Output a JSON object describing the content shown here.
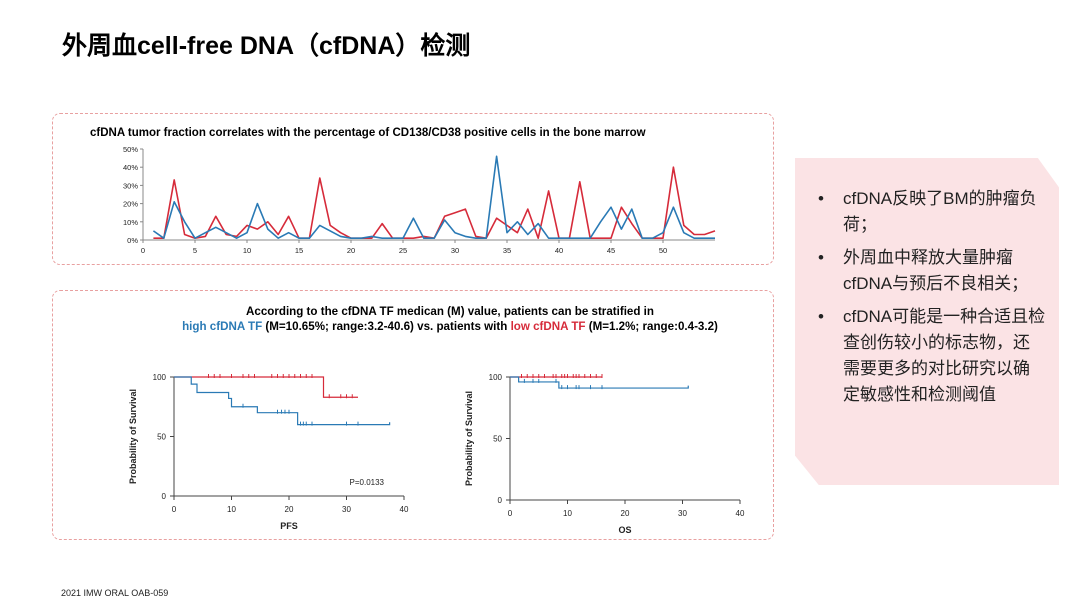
{
  "page": {
    "title": "外周血cell-free DNA（cfDNA）检测",
    "footer": "2021 IMW ORAL OAB-059"
  },
  "stratification": {
    "line1": "According to the cfDNA TF medican (M) value, patients can be stratified in",
    "high_label": "high cfDNA TF",
    "high_stats": " (M=10.65%; range:3.2-40.6) vs. patients with ",
    "low_label": "low cfDNA TF",
    "low_stats": " (M=1.2%; range:0.4-3.2)"
  },
  "bullets": [
    "cfDNA反映了BM的肿瘤负荷；",
    "外周血中释放大量肿瘤cfDNA与预后不良相关；",
    "cfDNA可能是一种合适且检查创伤较小的标志物，还需要更多的对比研究以确定敏感性和检测阈值"
  ],
  "colors": {
    "red": "#d62b3a",
    "blue": "#2a7ab5",
    "pink_panel": "#fbe3e5"
  },
  "chart_data": [
    {
      "type": "line",
      "title": "cfDNA tumor fraction correlates with the percentage of CD138/CD38 positive cells in the bone marrow",
      "x": [
        1,
        2,
        3,
        4,
        5,
        6,
        7,
        8,
        9,
        10,
        11,
        12,
        13,
        14,
        15,
        16,
        17,
        18,
        19,
        20,
        21,
        22,
        23,
        24,
        25,
        26,
        27,
        28,
        29,
        30,
        31,
        32,
        33,
        34,
        35,
        36,
        37,
        38,
        39,
        40,
        41,
        42,
        43,
        44,
        45,
        46,
        47,
        48,
        49,
        50,
        51,
        52,
        53,
        54,
        55
      ],
      "xticks": [
        0,
        5,
        10,
        15,
        20,
        25,
        30,
        35,
        40,
        45,
        50
      ],
      "yticks": [
        "0%",
        "10%",
        "20%",
        "30%",
        "40%",
        "50%"
      ],
      "ylim": [
        0,
        50
      ],
      "xlim": [
        0,
        55
      ],
      "series": [
        {
          "color": "#d62b3a",
          "values": [
            1,
            1,
            33,
            3,
            1,
            2,
            13,
            3,
            2,
            8,
            6,
            10,
            3,
            13,
            1,
            1,
            34,
            8,
            4,
            1,
            1,
            1,
            9,
            1,
            1,
            1,
            2,
            1,
            13,
            15,
            17,
            2,
            1,
            12,
            8,
            4,
            17,
            1,
            27,
            1,
            1,
            32,
            1,
            1,
            1,
            18,
            9,
            1,
            1,
            1,
            40,
            8,
            3,
            3,
            5
          ]
        },
        {
          "color": "#2a7ab5",
          "values": [
            5,
            1,
            21,
            10,
            1,
            4,
            7,
            4,
            1,
            4,
            20,
            6,
            1,
            4,
            1,
            1,
            8,
            5,
            2,
            1,
            1,
            2,
            1,
            1,
            1,
            12,
            1,
            1,
            11,
            4,
            2,
            1,
            1,
            46,
            4,
            10,
            3,
            9,
            1,
            1,
            1,
            1,
            1,
            10,
            18,
            6,
            17,
            1,
            1,
            4,
            18,
            4,
            1,
            1,
            1
          ]
        }
      ]
    },
    {
      "type": "line",
      "subtype": "kaplan-meier",
      "xlabel": "PFS",
      "ylabel": "Probability of Survival",
      "annotation": "P=0.0133",
      "xticks": [
        0,
        10,
        20,
        30,
        40
      ],
      "yticks": [
        0,
        50,
        100
      ],
      "xlim": [
        0,
        40
      ],
      "ylim": [
        0,
        100
      ],
      "series": [
        {
          "color": "#d62b3a",
          "steps": [
            [
              0,
              100
            ],
            [
              26,
              100
            ],
            [
              26,
              83
            ],
            [
              32,
              83
            ]
          ],
          "censors": [
            6,
            7,
            8,
            10,
            12,
            13,
            14,
            17,
            18,
            19,
            20,
            21,
            22,
            23,
            24,
            27,
            29,
            30,
            31
          ]
        },
        {
          "color": "#2a7ab5",
          "steps": [
            [
              0,
              100
            ],
            [
              3,
              94
            ],
            [
              4,
              87
            ],
            [
              9,
              87
            ],
            [
              9.5,
              82
            ],
            [
              10,
              75
            ],
            [
              14,
              75
            ],
            [
              14.5,
              70
            ],
            [
              21,
              70
            ],
            [
              21.5,
              60
            ],
            [
              37.5,
              60
            ],
            [
              37.5,
              62
            ]
          ],
          "censors": [
            12,
            18,
            18.7,
            19.3,
            20,
            22,
            22.5,
            23,
            24,
            30,
            32
          ]
        }
      ]
    },
    {
      "type": "line",
      "subtype": "kaplan-meier",
      "xlabel": "OS",
      "ylabel": "Probability of Survival",
      "xticks": [
        0,
        10,
        20,
        30,
        40
      ],
      "yticks": [
        0,
        50,
        100
      ],
      "xlim": [
        0,
        40
      ],
      "ylim": [
        0,
        100
      ],
      "series": [
        {
          "color": "#d62b3a",
          "steps": [
            [
              0,
              100
            ],
            [
              16,
              100
            ]
          ],
          "censors": [
            2,
            3,
            4,
            5,
            6,
            7.5,
            8,
            9,
            9.5,
            10,
            11,
            11.5,
            12,
            13,
            14,
            15,
            16
          ]
        },
        {
          "color": "#2a7ab5",
          "steps": [
            [
              0,
              100
            ],
            [
              1.5,
              96
            ],
            [
              8,
              96
            ],
            [
              8.5,
              91
            ],
            [
              31,
              91
            ],
            [
              31,
              93
            ]
          ],
          "censors": [
            2.5,
            4,
            5,
            8,
            9,
            10,
            11.5,
            12,
            14,
            16
          ]
        }
      ]
    }
  ]
}
